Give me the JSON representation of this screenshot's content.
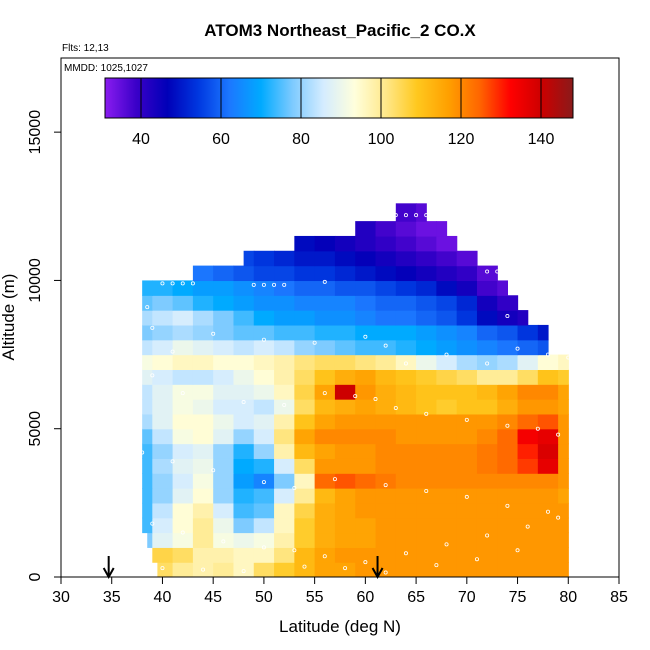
{
  "chart_data": {
    "type": "heatmap",
    "title": "ATOM3 Northeast_Pacific_2 CO.X",
    "annotations": [
      "Flts: 12,13",
      "MMDD: 1025,1027"
    ],
    "xlabel": "Latitude (deg N)",
    "ylabel": "Altitude (m)",
    "xlim": [
      30,
      85
    ],
    "ylim": [
      0,
      17500
    ],
    "xticks": [
      30,
      35,
      40,
      45,
      50,
      55,
      60,
      65,
      70,
      75,
      80,
      85
    ],
    "yticks": [
      0,
      5000,
      10000,
      15000
    ],
    "grid": false,
    "colorbar": {
      "range": [
        31,
        148
      ],
      "ticks": [
        40,
        60,
        80,
        100,
        120,
        140
      ],
      "colors": [
        "#8a1cf0",
        "#3a00c8",
        "#0000b8",
        "#0038e0",
        "#1c78ff",
        "#00aaff",
        "#7ccaff",
        "#d4ecff",
        "#ffffdc",
        "#ffe88a",
        "#ffc81e",
        "#ffa000",
        "#ff6600",
        "#ff0000",
        "#cc0000",
        "#8a1a1a"
      ],
      "placement": "top"
    },
    "arrows_lat": [
      34.7,
      61.2
    ],
    "latitude_columns": [
      38,
      40,
      42,
      44,
      46,
      48,
      50,
      52,
      54,
      56,
      58,
      60,
      62,
      64,
      66,
      68,
      70,
      72,
      74,
      76,
      78,
      80
    ],
    "altitude_bands": [
      {
        "alt_min": 0,
        "alt_max": 500,
        "lat_min": 39.5,
        "lat_max": 80,
        "values": [
          92,
          104,
          100,
          98,
          100,
          96,
          104,
          108,
          112,
          116,
          116,
          118,
          118,
          118,
          118,
          118,
          118,
          118,
          118,
          118,
          118,
          118
        ]
      },
      {
        "alt_min": 500,
        "alt_max": 1000,
        "lat_min": 39,
        "lat_max": 80,
        "values": [
          90,
          106,
          104,
          98,
          98,
          96,
          96,
          102,
          112,
          116,
          118,
          118,
          118,
          118,
          118,
          118,
          118,
          118,
          118,
          118,
          118,
          118
        ]
      },
      {
        "alt_min": 1000,
        "alt_max": 1500,
        "lat_min": 38.5,
        "lat_max": 80,
        "values": [
          78,
          88,
          92,
          100,
          92,
          90,
          92,
          98,
          108,
          114,
          116,
          116,
          118,
          118,
          118,
          118,
          118,
          118,
          118,
          118,
          118,
          118
        ]
      },
      {
        "alt_min": 1500,
        "alt_max": 2000,
        "lat_min": 38,
        "lat_max": 80,
        "values": [
          74,
          86,
          94,
          100,
          90,
          78,
          84,
          96,
          108,
          114,
          116,
          116,
          118,
          118,
          118,
          118,
          118,
          118,
          118,
          118,
          118,
          118
        ]
      },
      {
        "alt_min": 2000,
        "alt_max": 2500,
        "lat_min": 38,
        "lat_max": 80,
        "values": [
          74,
          84,
          94,
          98,
          86,
          74,
          76,
          96,
          106,
          114,
          116,
          118,
          118,
          118,
          118,
          118,
          118,
          118,
          118,
          118,
          118,
          118
        ]
      },
      {
        "alt_min": 2500,
        "alt_max": 3000,
        "lat_min": 38,
        "lat_max": 80,
        "values": [
          74,
          80,
          88,
          94,
          80,
          72,
          74,
          86,
          100,
          112,
          116,
          118,
          118,
          118,
          118,
          118,
          118,
          118,
          118,
          118,
          118,
          116
        ]
      },
      {
        "alt_min": 3000,
        "alt_max": 3500,
        "lat_min": 38,
        "lat_max": 80,
        "values": [
          74,
          80,
          86,
          92,
          80,
          68,
          64,
          78,
          96,
          124,
          126,
          124,
          122,
          120,
          120,
          120,
          120,
          120,
          120,
          120,
          120,
          118
        ]
      },
      {
        "alt_min": 3500,
        "alt_max": 4000,
        "lat_min": 38,
        "lat_max": 80,
        "values": [
          74,
          82,
          88,
          90,
          80,
          70,
          72,
          86,
          104,
          118,
          118,
          118,
          120,
          120,
          120,
          120,
          120,
          122,
          124,
          128,
          136,
          118
        ]
      },
      {
        "alt_min": 4000,
        "alt_max": 4500,
        "lat_min": 38,
        "lat_max": 80,
        "values": [
          74,
          80,
          86,
          88,
          80,
          72,
          80,
          98,
          112,
          116,
          118,
          118,
          120,
          120,
          120,
          120,
          120,
          122,
          124,
          130,
          138,
          118
        ]
      },
      {
        "alt_min": 4500,
        "alt_max": 5000,
        "lat_min": 38,
        "lat_max": 80,
        "values": [
          76,
          84,
          92,
          94,
          88,
          80,
          86,
          102,
          116,
          120,
          120,
          120,
          120,
          118,
          118,
          118,
          118,
          120,
          124,
          134,
          136,
          118
        ]
      },
      {
        "alt_min": 5000,
        "alt_max": 5500,
        "lat_min": 38,
        "lat_max": 80,
        "values": [
          82,
          88,
          94,
          94,
          90,
          86,
          88,
          98,
          110,
          116,
          118,
          118,
          118,
          118,
          118,
          118,
          118,
          118,
          120,
          124,
          126,
          118
        ]
      },
      {
        "alt_min": 5500,
        "alt_max": 6000,
        "lat_min": 38,
        "lat_max": 80,
        "values": [
          84,
          88,
          92,
          90,
          86,
          86,
          84,
          90,
          104,
          112,
          114,
          116,
          114,
          112,
          110,
          108,
          110,
          110,
          114,
          118,
          118,
          116
        ]
      },
      {
        "alt_min": 6000,
        "alt_max": 6500,
        "lat_min": 38,
        "lat_max": 80,
        "values": [
          84,
          88,
          92,
          92,
          88,
          88,
          90,
          96,
          106,
          116,
          140,
          118,
          114,
          112,
          110,
          110,
          110,
          112,
          116,
          120,
          120,
          116
        ]
      },
      {
        "alt_min": 6500,
        "alt_max": 7000,
        "lat_min": 38,
        "lat_max": 80,
        "values": [
          88,
          86,
          84,
          84,
          86,
          90,
          94,
          98,
          104,
          110,
          114,
          116,
          112,
          110,
          108,
          106,
          104,
          100,
          100,
          104,
          110,
          108
        ]
      },
      {
        "alt_min": 7000,
        "alt_max": 7500,
        "lat_min": 38,
        "lat_max": 80,
        "values": [
          92,
          94,
          96,
          96,
          94,
          94,
          96,
          98,
          102,
          104,
          104,
          102,
          100,
          96,
          90,
          86,
          82,
          80,
          82,
          88,
          94,
          96
        ]
      },
      {
        "alt_min": 7500,
        "alt_max": 8000,
        "lat_min": 38,
        "lat_max": 78,
        "values": [
          84,
          86,
          90,
          88,
          86,
          84,
          86,
          84,
          80,
          78,
          76,
          74,
          74,
          72,
          70,
          68,
          66,
          64,
          62,
          60,
          58,
          null
        ]
      },
      {
        "alt_min": 8000,
        "alt_max": 8500,
        "lat_min": 38,
        "lat_max": 78,
        "values": [
          78,
          80,
          82,
          80,
          78,
          76,
          76,
          74,
          74,
          72,
          72,
          70,
          70,
          70,
          68,
          66,
          64,
          60,
          58,
          54,
          50,
          null
        ]
      },
      {
        "alt_min": 8500,
        "alt_max": 9000,
        "lat_min": 38,
        "lat_max": 76,
        "values": [
          82,
          84,
          86,
          82,
          78,
          74,
          70,
          68,
          68,
          66,
          66,
          64,
          62,
          62,
          60,
          58,
          54,
          48,
          44,
          42,
          null,
          null
        ]
      },
      {
        "alt_min": 9000,
        "alt_max": 9500,
        "lat_min": 38,
        "lat_max": 75,
        "values": [
          76,
          78,
          76,
          72,
          70,
          68,
          66,
          66,
          64,
          64,
          64,
          62,
          60,
          60,
          58,
          56,
          52,
          44,
          40,
          null,
          null,
          null
        ]
      },
      {
        "alt_min": 9500,
        "alt_max": 10000,
        "lat_min": 38,
        "lat_max": 74,
        "values": [
          72,
          72,
          70,
          68,
          68,
          66,
          64,
          62,
          60,
          60,
          58,
          58,
          56,
          54,
          52,
          48,
          44,
          38,
          36,
          null,
          null,
          null
        ]
      },
      {
        "alt_min": 10000,
        "alt_max": 10500,
        "lat_min": 43,
        "lat_max": 73,
        "values": [
          null,
          null,
          64,
          62,
          60,
          58,
          56,
          56,
          54,
          54,
          52,
          50,
          48,
          46,
          44,
          42,
          40,
          36,
          null,
          null,
          null,
          null
        ]
      },
      {
        "alt_min": 10500,
        "alt_max": 11000,
        "lat_min": 48,
        "lat_max": 71,
        "values": [
          null,
          null,
          null,
          null,
          58,
          56,
          54,
          52,
          50,
          50,
          48,
          46,
          44,
          42,
          40,
          38,
          36,
          null,
          null,
          null,
          null,
          null
        ]
      },
      {
        "alt_min": 11000,
        "alt_max": 11500,
        "lat_min": 53,
        "lat_max": 69,
        "values": [
          null,
          null,
          null,
          null,
          null,
          null,
          null,
          50,
          48,
          46,
          44,
          42,
          40,
          38,
          36,
          34,
          null,
          null,
          null,
          null,
          null,
          null
        ]
      },
      {
        "alt_min": 11500,
        "alt_max": 12000,
        "lat_min": 59,
        "lat_max": 68,
        "values": [
          null,
          null,
          null,
          null,
          null,
          null,
          null,
          null,
          null,
          null,
          44,
          42,
          38,
          36,
          34,
          34,
          null,
          null,
          null,
          null,
          null,
          null
        ]
      },
      {
        "alt_min": 12000,
        "alt_max": 12600,
        "lat_min": 63,
        "lat_max": 66,
        "values": [
          null,
          null,
          null,
          null,
          null,
          null,
          null,
          null,
          null,
          null,
          null,
          null,
          40,
          38,
          36,
          null,
          null,
          null,
          null,
          null,
          null,
          null
        ]
      }
    ],
    "flight_track_points": [
      [
        40,
        9900
      ],
      [
        41,
        9900
      ],
      [
        42,
        9900
      ],
      [
        43,
        9900
      ],
      [
        49,
        9850
      ],
      [
        50,
        9850
      ],
      [
        51,
        9850
      ],
      [
        52,
        9850
      ],
      [
        56,
        9950
      ],
      [
        63,
        12200
      ],
      [
        64,
        12200
      ],
      [
        65,
        12200
      ],
      [
        66,
        12200
      ],
      [
        67,
        12100
      ],
      [
        72,
        10300
      ],
      [
        73,
        10300
      ],
      [
        38.5,
        9100
      ],
      [
        39,
        8400
      ],
      [
        41,
        7600
      ],
      [
        45,
        8200
      ],
      [
        50,
        8000
      ],
      [
        55,
        7900
      ],
      [
        60,
        8100
      ],
      [
        62,
        7800
      ],
      [
        64,
        7200
      ],
      [
        68,
        7500
      ],
      [
        72,
        7200
      ],
      [
        74,
        8800
      ],
      [
        75,
        7700
      ],
      [
        78,
        7500
      ],
      [
        80,
        7400
      ],
      [
        39,
        6800
      ],
      [
        42,
        6200
      ],
      [
        48,
        5900
      ],
      [
        52,
        5800
      ],
      [
        56,
        6200
      ],
      [
        59,
        6100
      ],
      [
        61,
        6000
      ],
      [
        63,
        5700
      ],
      [
        66,
        5500
      ],
      [
        70,
        5300
      ],
      [
        74,
        5100
      ],
      [
        77,
        5000
      ],
      [
        79,
        4800
      ],
      [
        38,
        4200
      ],
      [
        41,
        3900
      ],
      [
        45,
        3600
      ],
      [
        50,
        3200
      ],
      [
        53,
        3000
      ],
      [
        57,
        3300
      ],
      [
        62,
        3100
      ],
      [
        66,
        2900
      ],
      [
        70,
        2700
      ],
      [
        74,
        2400
      ],
      [
        78,
        2200
      ],
      [
        39,
        1800
      ],
      [
        42,
        1500
      ],
      [
        46,
        1200
      ],
      [
        50,
        1000
      ],
      [
        53,
        900
      ],
      [
        56,
        700
      ],
      [
        60,
        500
      ],
      [
        64,
        800
      ],
      [
        68,
        1100
      ],
      [
        72,
        1400
      ],
      [
        76,
        1700
      ],
      [
        79,
        2000
      ],
      [
        40,
        300
      ],
      [
        44,
        250
      ],
      [
        48,
        200
      ],
      [
        54,
        350
      ],
      [
        58,
        300
      ],
      [
        62,
        150
      ],
      [
        67,
        400
      ],
      [
        71,
        600
      ],
      [
        75,
        900
      ]
    ]
  }
}
